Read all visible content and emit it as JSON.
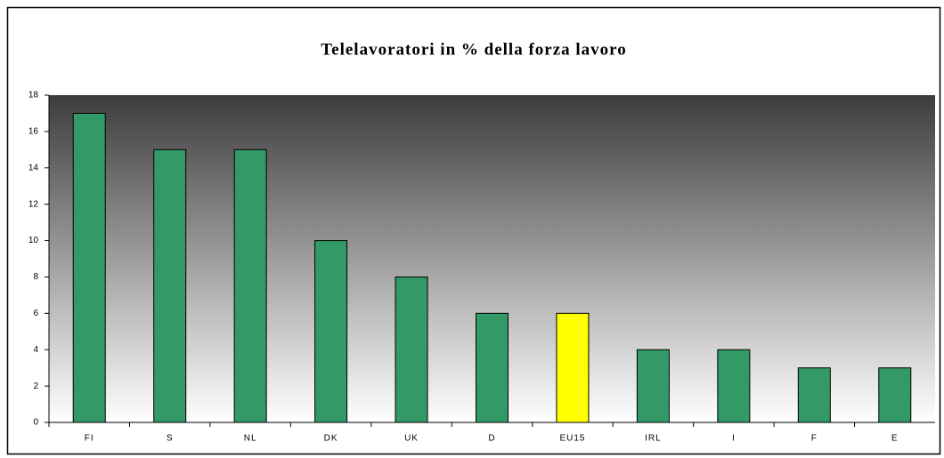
{
  "chart_data": {
    "type": "bar",
    "title": "Telelavoratori in % della forza lavoro",
    "categories": [
      "FI",
      "S",
      "NL",
      "DK",
      "UK",
      "D",
      "EU15",
      "IRL",
      "I",
      "F",
      "E"
    ],
    "values": [
      17,
      15,
      15,
      10,
      8,
      6,
      6,
      4,
      4,
      3,
      3
    ],
    "colors": [
      "#339966",
      "#339966",
      "#339966",
      "#339966",
      "#339966",
      "#339966",
      "#ffff00",
      "#339966",
      "#339966",
      "#339966",
      "#339966"
    ],
    "ylim": [
      0,
      18
    ],
    "yticks": [
      0,
      2,
      4,
      6,
      8,
      10,
      12,
      14,
      16,
      18
    ],
    "grid": false
  }
}
